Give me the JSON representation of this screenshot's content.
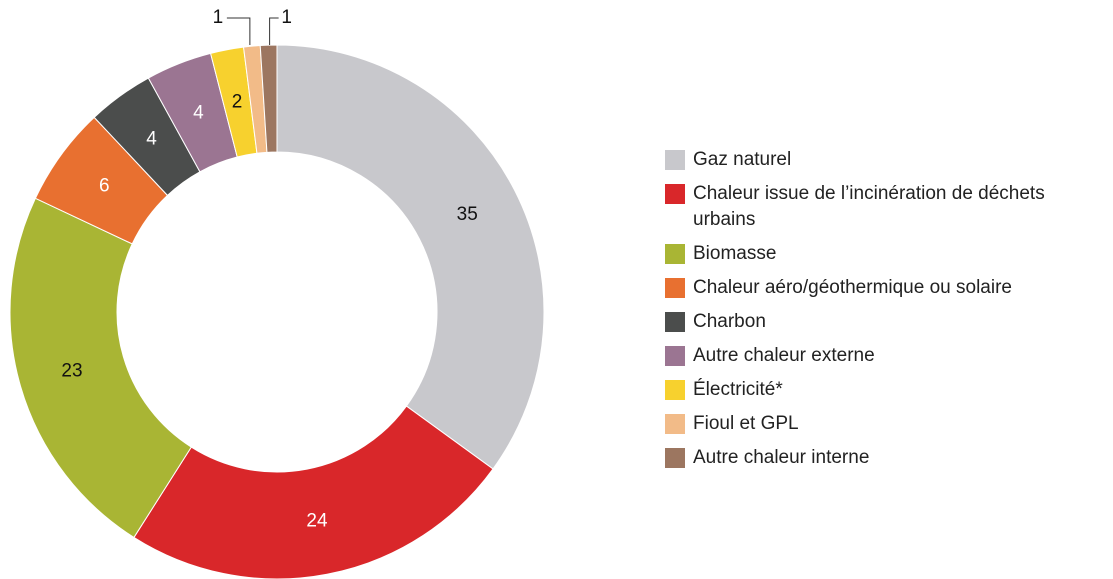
{
  "chart_data": {
    "type": "donut",
    "categories": [
      "Gaz naturel",
      "Chaleur issue de l’incinération de déchets urbains",
      "Biomasse",
      "Chaleur aéro/géothermique ou solaire",
      "Charbon",
      "Autre chaleur externe",
      "Électricité*",
      "Fioul et GPL",
      "Autre chaleur interne"
    ],
    "values": [
      35,
      24,
      23,
      6,
      4,
      4,
      2,
      1,
      1
    ],
    "colors": [
      "#c8c8cc",
      "#d9272a",
      "#a9b534",
      "#e87030",
      "#4b4d4c",
      "#9b7592",
      "#f7d12e",
      "#f2bb88",
      "#9c7660"
    ],
    "legend": "right"
  }
}
